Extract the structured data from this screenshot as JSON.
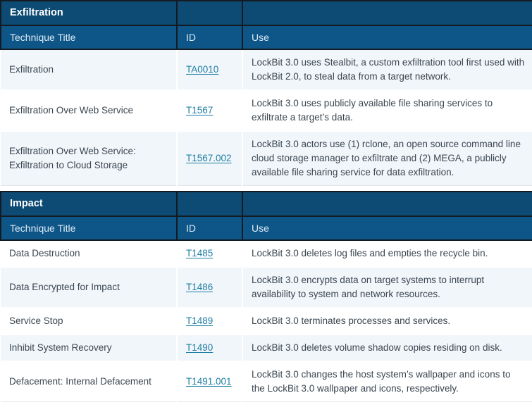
{
  "colors": {
    "section_header_bg": "#0d4b74",
    "column_header_bg": "#0f5688",
    "header_border": "#131a21",
    "shaded_row_bg": "#f1f6fa",
    "body_text": "#3b4650",
    "link_color": "#1e7ea4"
  },
  "tables": [
    {
      "section_title": "Exfiltration",
      "columns": [
        "Technique Title",
        "ID",
        "Use"
      ],
      "rows": [
        {
          "title": "Exfiltration",
          "id": "TA0010",
          "use": "LockBit 3.0 uses Stealbit, a custom exfiltration tool first used with LockBit 2.0, to steal data from a target network.",
          "shaded": true
        },
        {
          "title": "Exfiltration Over Web Service",
          "id": "T1567",
          "use": "LockBit 3.0 uses publicly available file sharing services to exfiltrate a target’s data.",
          "shaded": false
        },
        {
          "title": "Exfiltration Over Web Service: Exfiltration to Cloud Storage",
          "id": "T1567.002",
          "use": "LockBit 3.0 actors use (1) rclone, an open source command line cloud storage manager to exfiltrate and (2) MEGA, a publicly available file sharing service for data exfiltration.",
          "shaded": true
        }
      ]
    },
    {
      "section_title": "Impact",
      "columns": [
        "Technique Title",
        "ID",
        "Use"
      ],
      "rows": [
        {
          "title": "Data Destruction",
          "id": "T1485",
          "use": "LockBit 3.0 deletes log files and empties the recycle bin.",
          "shaded": false
        },
        {
          "title": "Data Encrypted for Impact",
          "id": "T1486",
          "use": "LockBit 3.0 encrypts data on target systems to interrupt availability to system and network resources.",
          "shaded": true
        },
        {
          "title": "Service Stop",
          "id": "T1489",
          "use": "LockBit 3.0 terminates processes and services.",
          "shaded": false
        },
        {
          "title": "Inhibit System Recovery",
          "id": "T1490",
          "use": "LockBit 3.0 deletes volume shadow copies residing on disk.",
          "shaded": true
        },
        {
          "title": "Defacement: Internal Defacement",
          "id": "T1491.001",
          "use": "LockBit 3.0 changes the host system’s wallpaper and icons to the LockBit 3.0 wallpaper and icons, respectively.",
          "shaded": false
        }
      ]
    }
  ]
}
